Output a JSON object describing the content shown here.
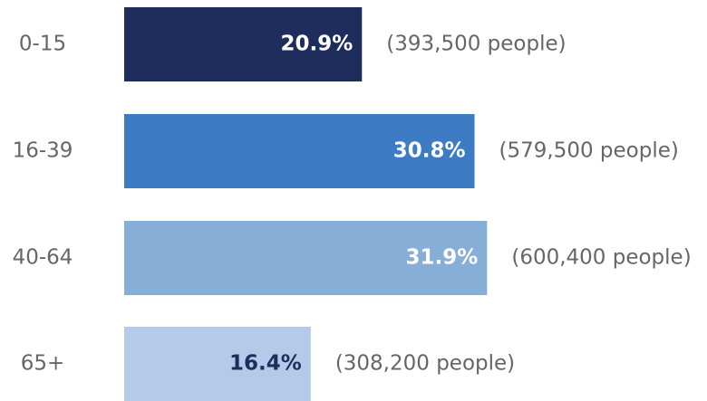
{
  "chart_data": {
    "type": "bar",
    "orientation": "horizontal",
    "categories": [
      "0-15",
      "16-39",
      "40-64",
      "65+"
    ],
    "values": [
      20.9,
      30.8,
      31.9,
      16.4
    ],
    "value_labels": [
      "20.9%",
      "30.8%",
      "31.9%",
      "16.4%"
    ],
    "annotations": [
      "(393,500 people)",
      "(579,500 people)",
      "(600,400 people)",
      "(308,200 people)"
    ],
    "colors": [
      "#1f2d5c",
      "#3d7cc4",
      "#87aed6",
      "#b3cbe9"
    ]
  }
}
